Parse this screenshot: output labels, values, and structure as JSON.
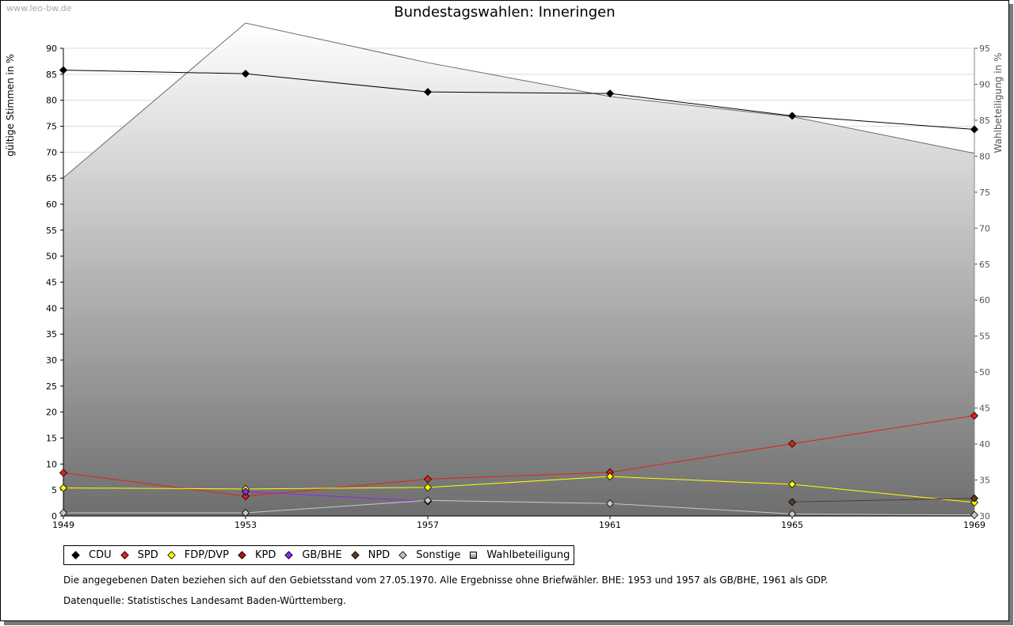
{
  "watermark": "www.leo-bw.de",
  "chart_data": {
    "type": "line",
    "title": "Bundestagswahlen: Inneringen",
    "ylabel": "gültige Stimmen in %",
    "y2label": "Wahlbeteiligung in %",
    "ylim": [
      0,
      90
    ],
    "y2lim": [
      30,
      95
    ],
    "yticks": [
      "0",
      "5",
      "10",
      "15",
      "20",
      "25",
      "30",
      "35",
      "40",
      "45",
      "50",
      "55",
      "60",
      "65",
      "70",
      "75",
      "80",
      "85",
      "90"
    ],
    "y2ticks": [
      "30",
      "35",
      "40",
      "45",
      "50",
      "55",
      "60",
      "65",
      "70",
      "75",
      "80",
      "85",
      "90",
      "95"
    ],
    "x": [
      "1949",
      "1953",
      "1957",
      "1961",
      "1965",
      "1969"
    ],
    "series": [
      {
        "name": "CDU",
        "color": "#000000",
        "values": [
          85.8,
          85.1,
          81.6,
          81.3,
          77.0,
          74.4
        ]
      },
      {
        "name": "SPD",
        "color": "#e32119",
        "values": [
          8.3,
          3.8,
          7.1,
          8.4,
          13.9,
          19.3
        ]
      },
      {
        "name": "FDP/DVP",
        "color": "#ffff00",
        "values": [
          5.4,
          5.2,
          5.5,
          7.6,
          6.1,
          2.6
        ]
      },
      {
        "name": "KPD",
        "color": "#b01010",
        "values": [
          null,
          null,
          null,
          null,
          null,
          null
        ]
      },
      {
        "name": "GB/BHE",
        "color": "#8a2be2",
        "values": [
          null,
          4.7,
          2.8,
          null,
          null,
          null
        ]
      },
      {
        "name": "NPD",
        "color": "#5a3a28",
        "values": [
          null,
          null,
          null,
          null,
          2.7,
          3.4
        ]
      },
      {
        "name": "Sonstige",
        "color": "#c8c8c8",
        "values": [
          0.6,
          0.6,
          3.0,
          2.4,
          0.4,
          0.2
        ]
      }
    ],
    "turnout": {
      "name": "Wahlbeteiligung",
      "values": [
        77.0,
        98.5,
        93.0,
        88.3,
        85.5,
        80.4
      ]
    }
  },
  "legend": [
    {
      "label": "CDU",
      "color": "#000000",
      "shape": "diamond"
    },
    {
      "label": "SPD",
      "color": "#e32119",
      "shape": "diamond"
    },
    {
      "label": "FDP/DVP",
      "color": "#ffff00",
      "shape": "diamond"
    },
    {
      "label": "KPD",
      "color": "#b01010",
      "shape": "diamond"
    },
    {
      "label": "GB/BHE",
      "color": "#8a2be2",
      "shape": "diamond"
    },
    {
      "label": "NPD",
      "color": "#5a3a28",
      "shape": "diamond"
    },
    {
      "label": "Sonstige",
      "color": "#c0c0c0",
      "shape": "diamond"
    },
    {
      "label": "Wahlbeteiligung",
      "color": "#aaaaaa",
      "shape": "square"
    }
  ],
  "notes": {
    "line1": "Die angegebenen Daten beziehen sich auf den Gebietsstand vom 27.05.1970. Alle Ergebnisse ohne Briefwähler. BHE: 1953 und 1957 als GB/BHE, 1961 als GDP.",
    "line2": "Datenquelle: Statistisches Landesamt Baden-Württemberg."
  }
}
